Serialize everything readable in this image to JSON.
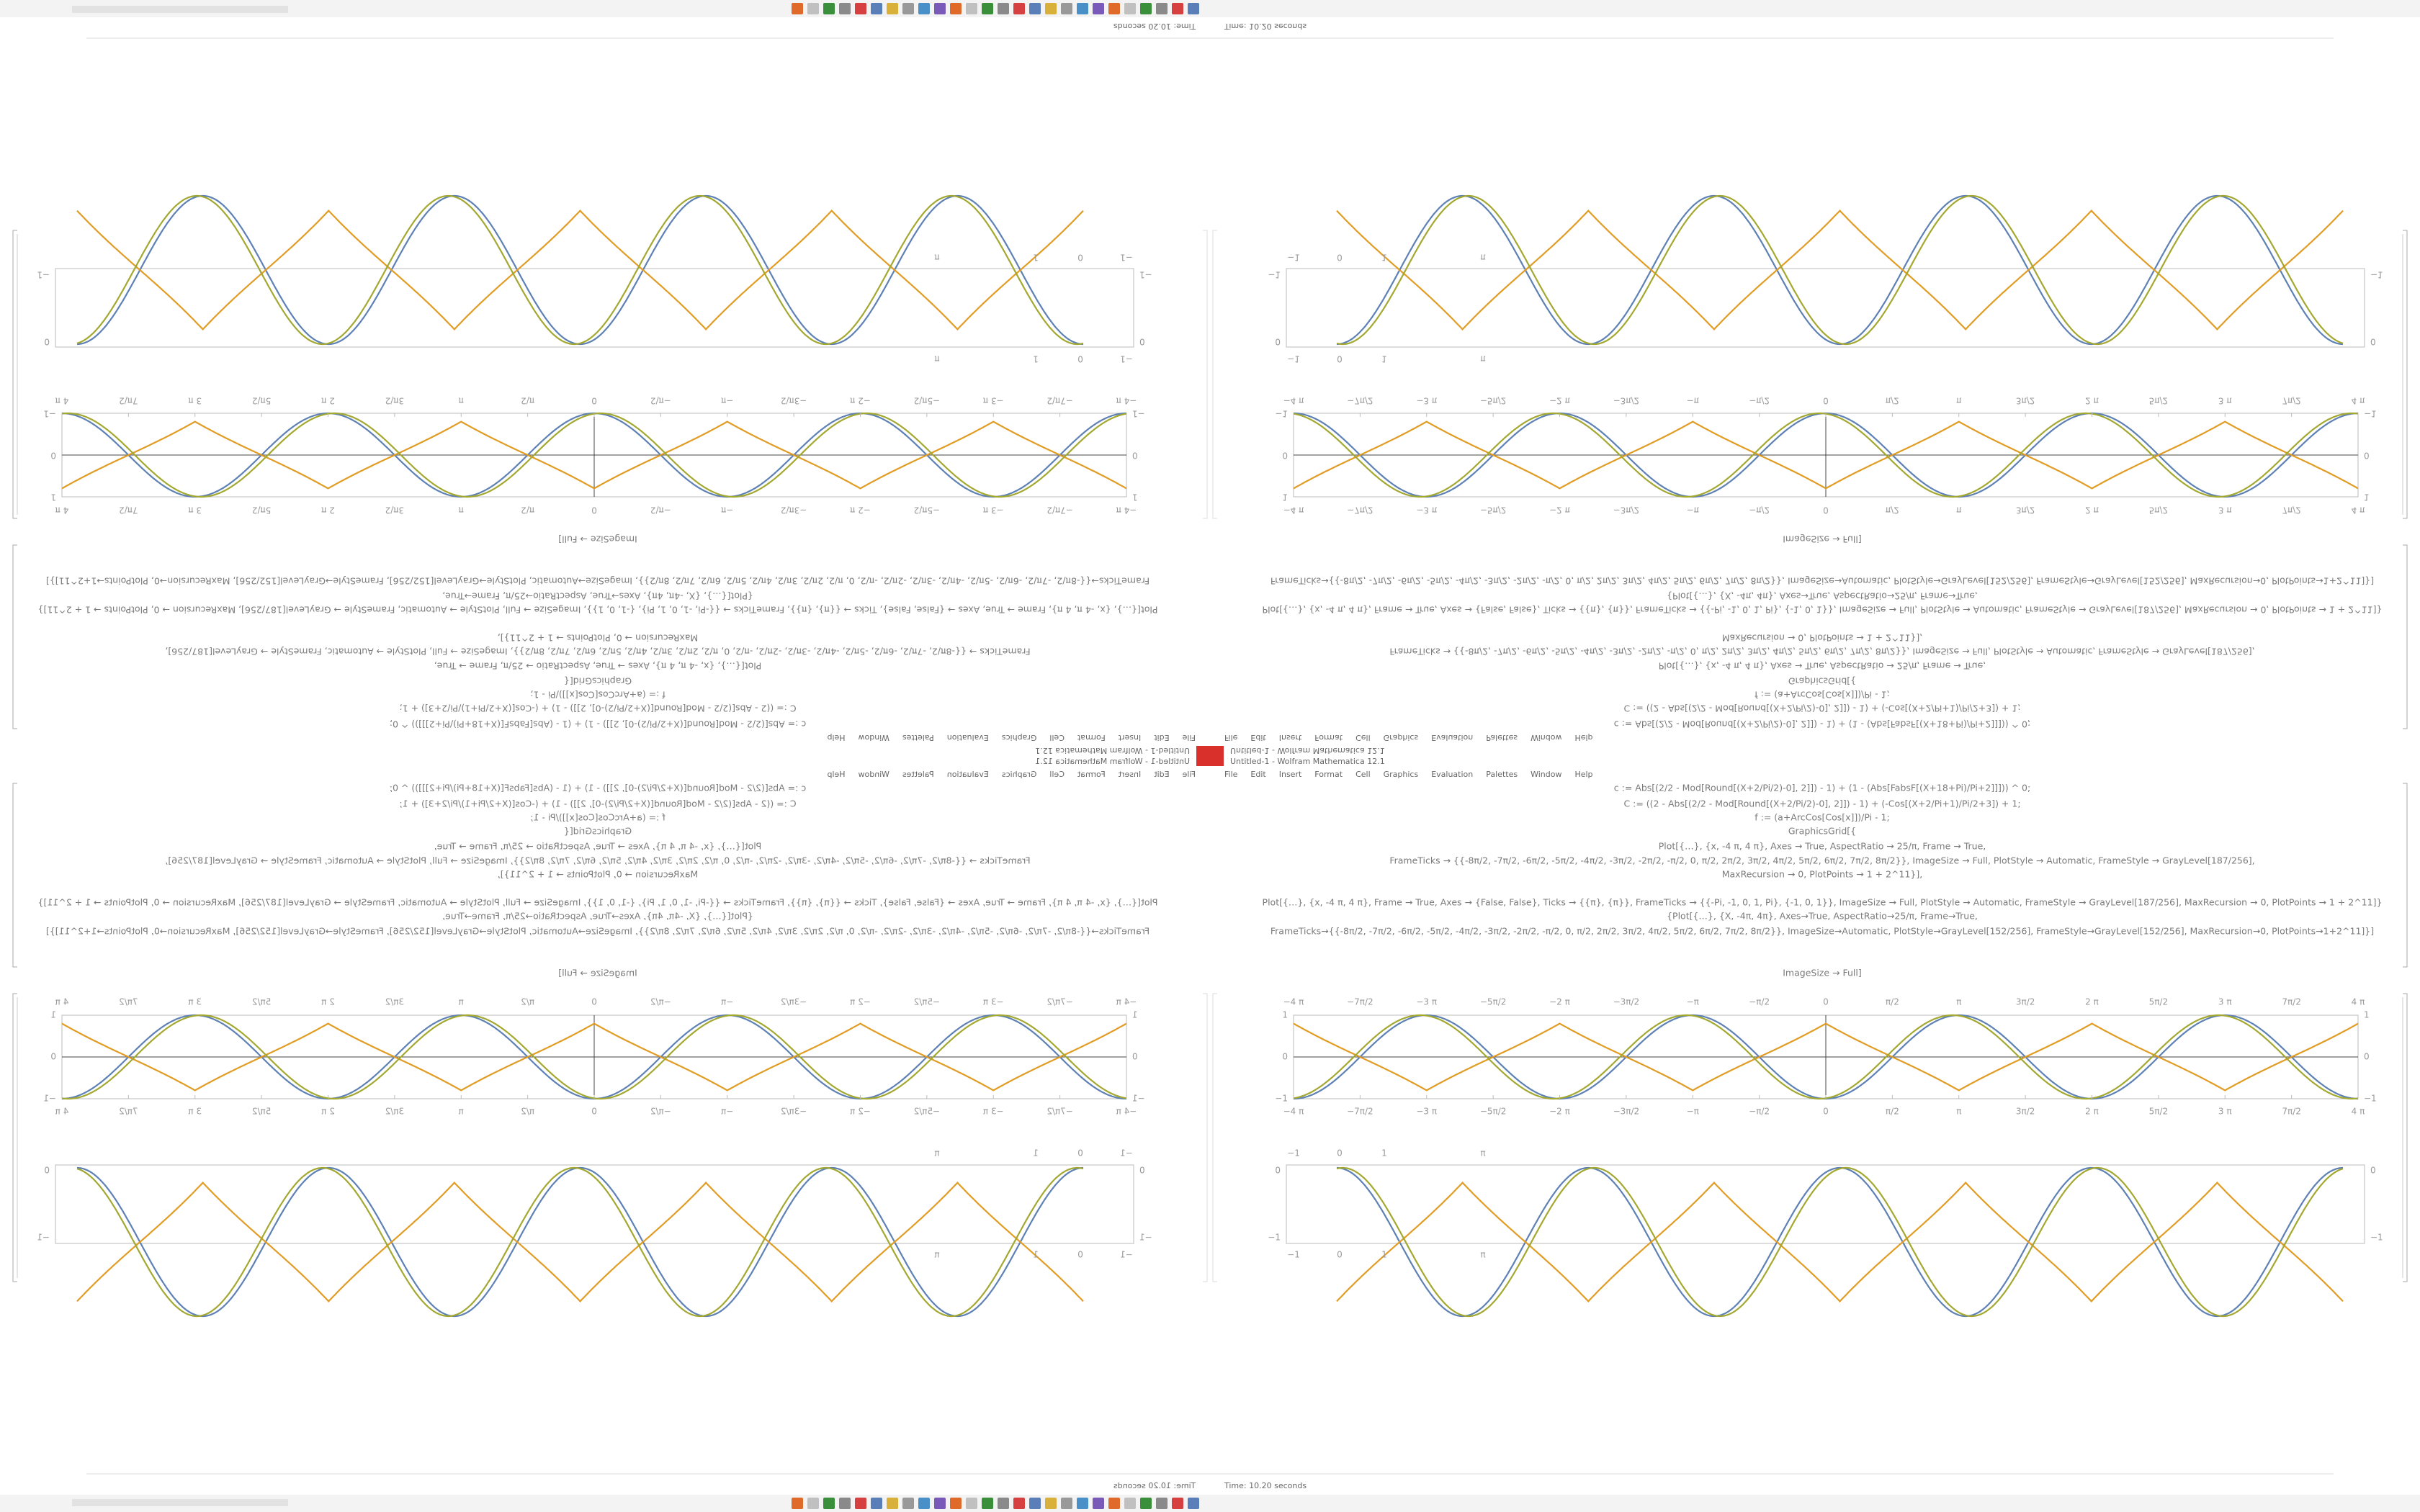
{
  "window": {
    "title": "Untitled-1 - Wolfram Mathematica 12.1",
    "menu": [
      "File",
      "Edit",
      "Insert",
      "Format",
      "Cell",
      "Graphics",
      "Evaluation",
      "Palettes",
      "Window",
      "Help"
    ]
  },
  "status": "Time: 10.20 seconds",
  "input_cells": [
    "c := Abs[(2/2 - Mod[Round[(X+2/Pi/2)-0], 2]]) - 1) + (1 - (Abs[FabsF[(X+18+Pi)/Pi+2]]])) ^ 0;",
    "C := ((2 - Abs[(2/2 - Mod[Round[(X+2/Pi/2)-0], 2]]) - 1) + (-Cos[(X+2/Pi+1)/Pi/2+3]) + 1;",
    "f := (a+ArcCos[Cos[x]])/Pi - 1;",
    "GraphicsGrid[{",
    "Plot[{…}, {x, -4 π, 4 π}, Axes → True, AspectRatio → 25/π, Frame → True,",
    "FrameTicks → {{-8π/2, -7π/2, -6π/2, -5π/2, -4π/2, -3π/2, -2π/2, -π/2, 0, π/2, 2π/2, 3π/2, 4π/2, 5π/2, 6π/2, 7π/2, 8π/2}}, ImageSize → Full, PlotStyle → Automatic, FrameStyle → GrayLevel[187/256],",
    "MaxRecursion → 0, PlotPoints → 1 + 2^11}],",
    "Plot[{…}, {x, -4 π, 4 π}, Frame → True, Axes → {False, False}, Ticks → {{π}, {π}}, FrameTicks → {{-Pi, -1, 0, 1, Pi}, {-1, 0, 1}}, ImageSize → Full, PlotStyle → Automatic, FrameStyle → GrayLevel[187/256], MaxRecursion → 0, PlotPoints → 1 + 2^11]}",
    "{Plot[{…}, {X, -4π, 4π}, Axes→True, AspectRatio→25/π, Frame→True,",
    "FrameTicks→{{-8π/2, -7π/2, -6π/2, -5π/2, -4π/2, -3π/2, -2π/2, -π/2, 0, π/2, 2π/2, 3π/2, 4π/2, 5π/2, 6π/2, 7π/2, 8π/2}}, ImageSize→Automatic, PlotStyle→GrayLevel[152/256], FrameStyle→GrayLevel[152/256], MaxRecursion→0, PlotPoints→1+2^11]}]"
  ],
  "output_cell": "ImageSize → Full]",
  "plot_a": {
    "x_tick_labels": [
      "−4 π",
      "−7π/2",
      "−3 π",
      "−5π/2",
      "−2 π",
      "−3π/2",
      "−π",
      "−π/2",
      "0",
      "π/2",
      "π",
      "3π/2",
      "2 π",
      "5π/2",
      "3 π",
      "7π/2",
      "4 π"
    ],
    "y_tick_labels": [
      "1",
      "0",
      "−1"
    ]
  },
  "plot_b": {
    "x_tick_labels": [
      "−1",
      "0",
      "1",
      "π"
    ],
    "y_tick_labels": [
      "0",
      "−1"
    ]
  }
}
